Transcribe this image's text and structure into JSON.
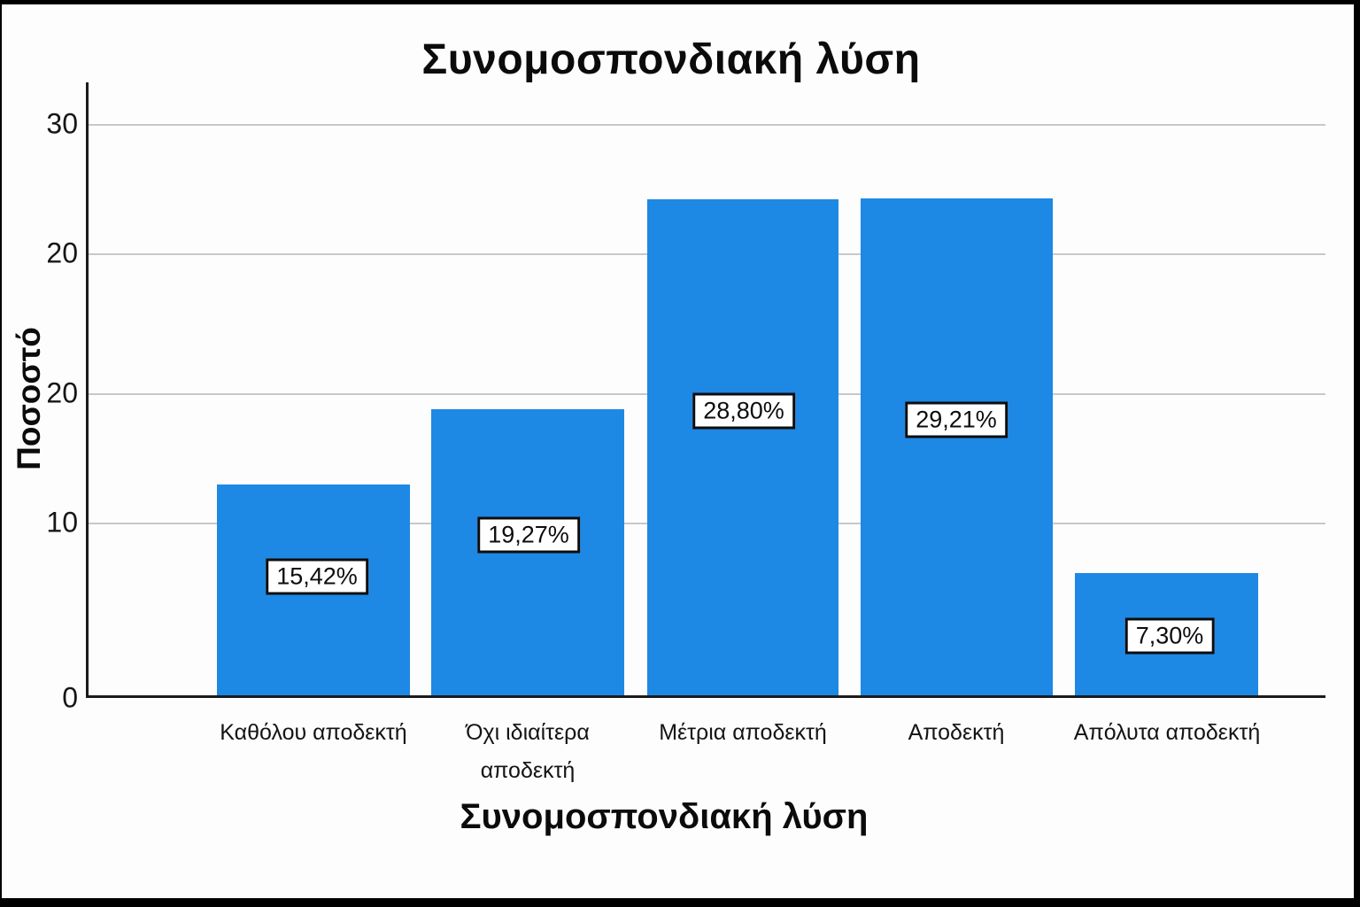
{
  "chart_data": {
    "type": "bar",
    "title": "Συνομοσπονδιακή λύση",
    "xlabel": "Συνομοσπονδιακή λύση",
    "ylabel": "Ποσοστό",
    "categories": [
      "Καθόλου αποδεκτή",
      "Όχι ιδιαίτερα αποδεκτή",
      "Μέτρια αποδεκτή",
      "Αποδεκτή",
      "Απόλυτα αποδεκτή"
    ],
    "values": [
      15.42,
      19.27,
      28.8,
      29.21,
      7.3
    ],
    "value_labels": [
      "15,42%",
      "19,27%",
      "28,80%",
      "29,21%",
      "7,30%"
    ],
    "y_tick_labels": [
      "30",
      "20",
      "20",
      "10",
      "0"
    ],
    "ylim": [
      0,
      33
    ],
    "grid": true,
    "legend": "none",
    "bar_color": "#1E88E5",
    "grid_color": "#c8c8c8",
    "axis_color": "#1b1b1b",
    "value_label_box": {
      "background": "#ffffff",
      "border": "#0d0d0d"
    }
  }
}
